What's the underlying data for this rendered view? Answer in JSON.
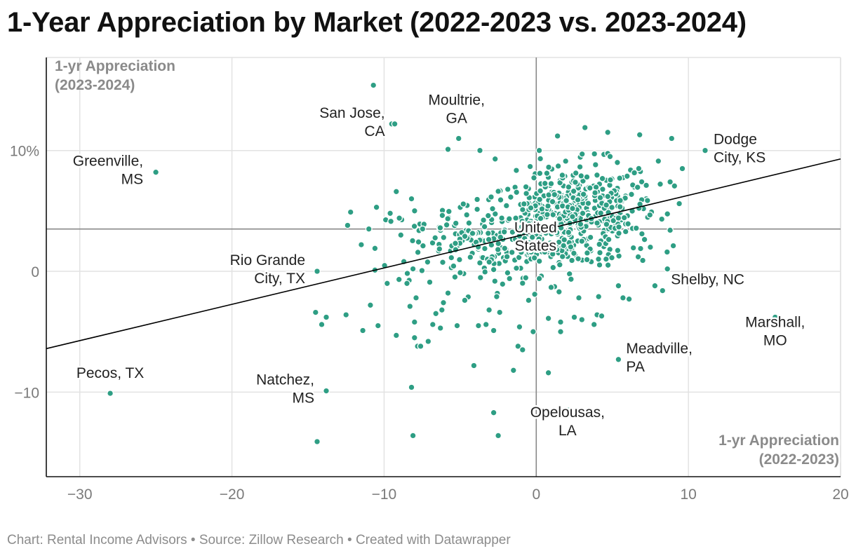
{
  "title": "1-Year Appreciation by Market (2022-2023 vs. 2023-2024)",
  "footer": "Chart: Rental Income Advisors • Source: Zillow Research • Created with Datawrapper",
  "colors": {
    "point": "#2e9e84",
    "trend": "#000000",
    "ref": "#888888",
    "grid": "#e2e2e2"
  },
  "chart_data": {
    "type": "scatter",
    "xlabel": [
      "1-yr Appreciation",
      "(2022-2023)"
    ],
    "ylabel": [
      "1-yr Appreciation",
      "(2023-2024)"
    ],
    "xlim": [
      -32.2,
      20
    ],
    "ylim": [
      -17,
      17.7
    ],
    "x_ticks": [
      {
        "v": -30,
        "label": "−30"
      },
      {
        "v": -20,
        "label": "−20"
      },
      {
        "v": -10,
        "label": "−10"
      },
      {
        "v": 0,
        "label": "0"
      },
      {
        "v": 10,
        "label": "10"
      },
      {
        "v": 20,
        "label": "20"
      }
    ],
    "y_ticks": [
      {
        "v": 10,
        "label": "10%"
      },
      {
        "v": 0,
        "label": "0"
      },
      {
        "v": -10,
        "label": "−10"
      }
    ],
    "reference_lines": {
      "x": 0,
      "y": 3.5
    },
    "trendline": {
      "x1": -32.2,
      "y1": -6.4,
      "x2": 20,
      "y2": 9.3
    },
    "labeled_points": [
      {
        "x": -25,
        "y": 8.2,
        "label": [
          "Greenville,",
          "MS"
        ],
        "dx": -18,
        "dy": -9,
        "anchor": "end"
      },
      {
        "x": -28,
        "y": -10.1,
        "label": [
          "Pecos, TX"
        ],
        "dx": 0,
        "dy": -22,
        "anchor": "middle"
      },
      {
        "x": -9.3,
        "y": 12.2,
        "label": [
          "San Jose,",
          "CA"
        ],
        "dx": -14,
        "dy": -9,
        "anchor": "end"
      },
      {
        "x": -5.1,
        "y": 11,
        "label": [
          "Moultrie,",
          "GA"
        ],
        "dx": -3,
        "dy": -48,
        "anchor": "middle"
      },
      {
        "x": -14.4,
        "y": 0,
        "label": [
          "Rio Grande",
          "City, TX"
        ],
        "dx": -17,
        "dy": -9,
        "anchor": "end"
      },
      {
        "x": -13.8,
        "y": -9.9,
        "label": [
          "Natchez,",
          "MS"
        ],
        "dx": -17,
        "dy": -9,
        "anchor": "end"
      },
      {
        "x": 11.1,
        "y": 10,
        "label": [
          "Dodge",
          "City, KS"
        ],
        "dx": 12,
        "dy": -9,
        "anchor": "start"
      },
      {
        "x": 8.3,
        "y": -1.6,
        "label": [
          "Shelby, NC"
        ],
        "dx": 12,
        "dy": -9,
        "anchor": "start"
      },
      {
        "x": 15.7,
        "y": -3.8,
        "label": [
          "Marshall,",
          "MO"
        ],
        "dx": 0,
        "dy": 14,
        "anchor": "middle"
      },
      {
        "x": 5.4,
        "y": -7.3,
        "label": [
          "Meadville,",
          "PA"
        ],
        "dx": 11,
        "dy": -9,
        "anchor": "start"
      },
      {
        "x": 2.1,
        "y": -11.5,
        "label": [
          "Opelousas,",
          "LA"
        ],
        "dx": -1,
        "dy": 10,
        "anchor": "middle"
      },
      {
        "x": 0,
        "y": 3.5,
        "label": [
          "United",
          "States"
        ],
        "dx": -1,
        "dy": 5,
        "anchor": "middle"
      }
    ],
    "extra_points": [
      [
        -10.7,
        15.4
      ],
      [
        -9.5,
        12.2
      ],
      [
        -5.1,
        11.0
      ],
      [
        -5.8,
        10.1
      ],
      [
        -3.7,
        10.0
      ],
      [
        -2.7,
        9.3
      ],
      [
        -12.2,
        4.9
      ],
      [
        -12.4,
        3.8
      ],
      [
        -10.5,
        5.3
      ],
      [
        -10.6,
        1.9
      ],
      [
        -10.6,
        0.1
      ],
      [
        -10.4,
        -4.5
      ],
      [
        -9.6,
        4.8
      ],
      [
        -9.2,
        6.6
      ],
      [
        -9.0,
        4.4
      ],
      [
        -8.9,
        3.0
      ],
      [
        -8.7,
        0.8
      ],
      [
        -8.5,
        -1.0
      ],
      [
        -8.3,
        -2.9
      ],
      [
        -8.2,
        6.0
      ],
      [
        -8.1,
        0.2
      ],
      [
        -8.0,
        -4.2
      ],
      [
        -8.0,
        -5.5
      ],
      [
        -8.2,
        -9.6
      ],
      [
        -8.1,
        -13.6
      ],
      [
        -7.8,
        -6.2
      ],
      [
        -7.6,
        -6.2
      ],
      [
        -7.1,
        -5.8
      ],
      [
        -6.8,
        -4.4
      ],
      [
        -6.6,
        -3.5
      ],
      [
        -6.3,
        -4.7
      ],
      [
        -6.2,
        -3.2
      ],
      [
        -5.8,
        -1.8
      ],
      [
        -5.2,
        -4.5
      ],
      [
        -4.7,
        -2.4
      ],
      [
        -4.1,
        -7.8
      ],
      [
        -3.8,
        -4.5
      ],
      [
        -3.3,
        -4.4
      ],
      [
        -3.1,
        -3.2
      ],
      [
        -2.8,
        -4.9
      ],
      [
        -2.6,
        -2.1
      ],
      [
        -2.4,
        -3.4
      ],
      [
        -2.8,
        -11.7
      ],
      [
        -2.5,
        -13.6
      ],
      [
        -1.5,
        -8.2
      ],
      [
        -1.2,
        -6.2
      ],
      [
        -0.9,
        -6.5
      ],
      [
        -0.2,
        -5.0
      ],
      [
        0.8,
        -8.4
      ],
      [
        0.8,
        -3.9
      ],
      [
        1.6,
        -4.2
      ],
      [
        1.6,
        -5.0
      ],
      [
        2.1,
        -11.5
      ],
      [
        2.5,
        -3.8
      ],
      [
        3.0,
        -4.0
      ],
      [
        3.8,
        -4.4
      ],
      [
        4.0,
        -3.6
      ],
      [
        4.3,
        -3.7
      ],
      [
        5.4,
        -1.2
      ],
      [
        5.7,
        -2.2
      ],
      [
        6.1,
        -2.3
      ],
      [
        7.8,
        -1.2
      ],
      [
        8.3,
        -1.6
      ],
      [
        6.7,
        1.2
      ],
      [
        7.0,
        0.9
      ],
      [
        7.5,
        2.0
      ],
      [
        8.6,
        1.6
      ],
      [
        8.8,
        3.4
      ],
      [
        9.4,
        5.6
      ],
      [
        9.6,
        8.5
      ],
      [
        8.9,
        11.0
      ],
      [
        8.8,
        7.4
      ],
      [
        6.8,
        11.3
      ],
      [
        4.7,
        11.5
      ],
      [
        3.2,
        11.9
      ],
      [
        1.4,
        11.2
      ],
      [
        0.2,
        10.0
      ],
      [
        -13.8,
        -3.8
      ],
      [
        -14.5,
        -3.4
      ],
      [
        -14.1,
        -4.4
      ],
      [
        -12.5,
        -3.6
      ],
      [
        -11.4,
        -4.9
      ],
      [
        -10.9,
        -2.8
      ],
      [
        -9.2,
        -5.3
      ],
      [
        -11.0,
        3.5
      ],
      [
        -11.5,
        2.2
      ],
      [
        -9.8,
        -1.0
      ],
      [
        -7.9,
        -2.2
      ],
      [
        -7.0,
        -0.9
      ],
      [
        -6.1,
        -2.6
      ],
      [
        -14.4,
        -14.1
      ],
      [
        -1.1,
        -4.6
      ],
      [
        0.2,
        -0.6
      ],
      [
        -0.1,
        -1.9
      ],
      [
        -0.5,
        -2.4
      ],
      [
        1.5,
        -1.7
      ],
      [
        2.8,
        -2.2
      ],
      [
        4.1,
        -2.1
      ]
    ]
  }
}
